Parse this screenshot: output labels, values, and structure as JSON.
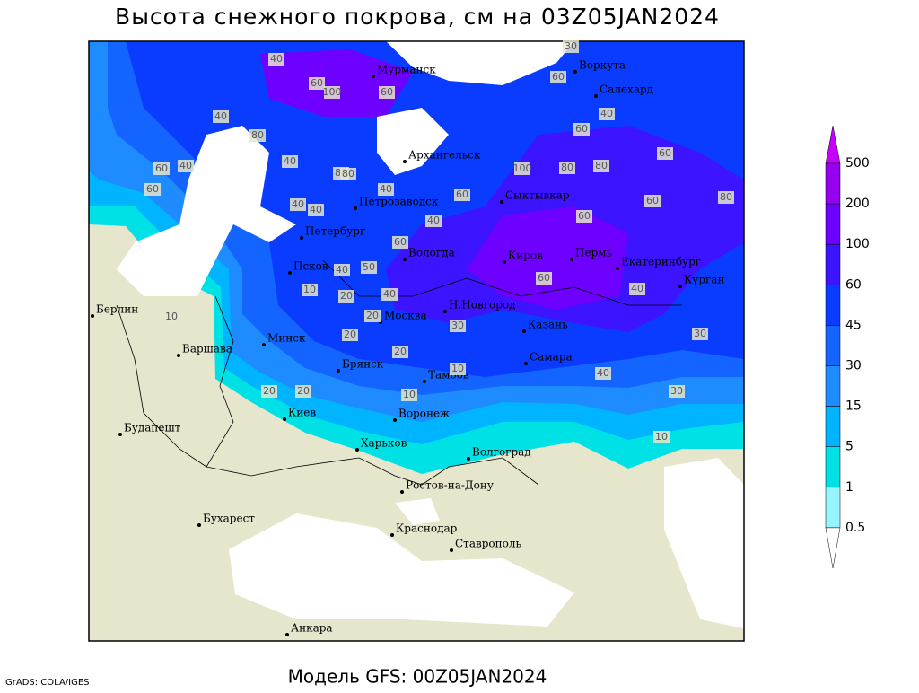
{
  "header": {
    "title": "Высота снежного покрова, см на 03Z05JAN2024"
  },
  "footer": {
    "model": "Модель GFS: 00Z05JAN2024",
    "credit": "GrADS: COLA/IGES"
  },
  "legend": {
    "labels": [
      500,
      200,
      100,
      60,
      45,
      30,
      15,
      5,
      1,
      0.5
    ],
    "colors": [
      "#c800ff",
      "#9600f0",
      "#6e00ff",
      "#3c14ff",
      "#0a3cff",
      "#1464ff",
      "#1e8cff",
      "#00b4ff",
      "#00e1e6",
      "#96f5ff",
      "#ffffff"
    ]
  },
  "map": {
    "cities": [
      "Мурманск",
      "Воркута",
      "Салехард",
      "Архангельск",
      "Петрозаводск",
      "Сыктывкар",
      "Петербург",
      "Вологда",
      "Киров",
      "Пермь",
      "Екатеринбург",
      "Курган",
      "Псков",
      "Москва",
      "Н.Новгород",
      "Казань",
      "Берлин",
      "Минск",
      "Варшава",
      "Брянск",
      "Тамбов",
      "Самара",
      "Киев",
      "Воронеж",
      "Будапешт",
      "Харьков",
      "Волгоград",
      "Ростов-на-Дону",
      "Бухарест",
      "Краснодар",
      "Ставрополь",
      "Анкара"
    ],
    "contour_labels": [
      30,
      40,
      60,
      100,
      60,
      40,
      80,
      40,
      60,
      40,
      60,
      80,
      100,
      80,
      80,
      60,
      60,
      40,
      40,
      40,
      60,
      60,
      80,
      60,
      40,
      60,
      40,
      30,
      10,
      50,
      40,
      20,
      20,
      20,
      30,
      40,
      30,
      20,
      20,
      10,
      10,
      60,
      40,
      40,
      20,
      10,
      10,
      60,
      80
    ]
  }
}
